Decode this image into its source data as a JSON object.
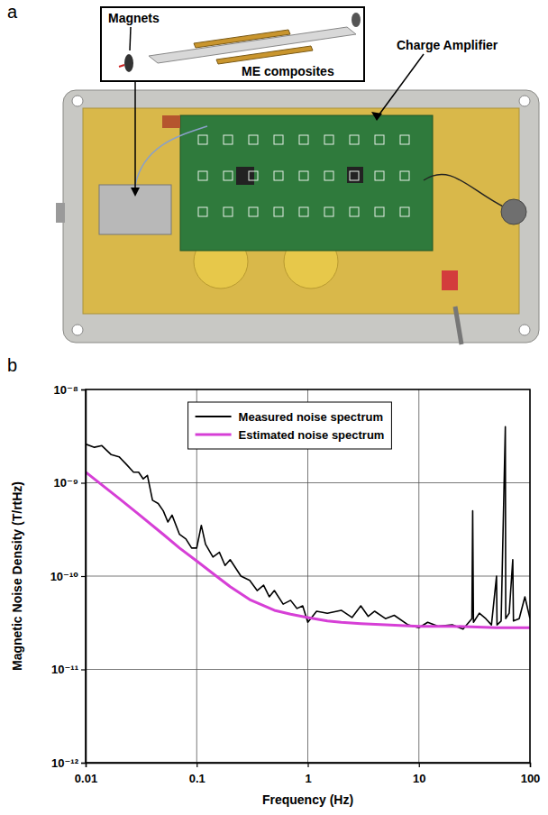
{
  "panel_a": {
    "label": "a",
    "magnets": "Magnets",
    "composites": "ME composites",
    "amplifier": "Charge Amplifier"
  },
  "chart_data": {
    "type": "line",
    "panel_label": "b",
    "x_label": "Frequency (Hz)",
    "y_label": "Magnetic Noise Density (T/rtHz)",
    "log": true,
    "grid": true,
    "legend": "top",
    "xlim": [
      0.01,
      100
    ],
    "xticks": [
      0.01,
      0.1,
      1,
      10,
      100
    ],
    "ylim": [
      1e-12,
      1e-08
    ],
    "yticks": [
      {
        "value": 1e-12,
        "label": "10⁻¹²"
      },
      {
        "value": 1e-11,
        "label": "10⁻¹¹"
      },
      {
        "value": 1e-10,
        "label": "10⁻¹⁰"
      },
      {
        "value": 1e-09,
        "label": "10⁻⁹"
      },
      {
        "value": 1e-08,
        "label": "10⁻⁸"
      }
    ],
    "series": [
      {
        "name": "Measured noise spectrum",
        "color": "#000000",
        "x": [
          0.01,
          0.012,
          0.014,
          0.017,
          0.02,
          0.023,
          0.027,
          0.03,
          0.033,
          0.036,
          0.04,
          0.045,
          0.05,
          0.055,
          0.06,
          0.07,
          0.08,
          0.09,
          0.1,
          0.11,
          0.12,
          0.14,
          0.16,
          0.18,
          0.2,
          0.25,
          0.3,
          0.35,
          0.4,
          0.45,
          0.5,
          0.6,
          0.7,
          0.8,
          0.9,
          1,
          1.2,
          1.5,
          2,
          2.5,
          3,
          3.5,
          4,
          5,
          6,
          8,
          10,
          12,
          15,
          20,
          25,
          30,
          30.5,
          31,
          35,
          40,
          45,
          50,
          50.5,
          55,
          60,
          60.5,
          65,
          70,
          71,
          80,
          90,
          100
        ],
        "values": [
          2.6e-09,
          2.4e-09,
          2.5e-09,
          2e-09,
          1.9e-09,
          1.6e-09,
          1.3e-09,
          1.3e-09,
          1.1e-09,
          1.2e-09,
          6.5e-10,
          6e-10,
          5e-10,
          3.8e-10,
          4.5e-10,
          2.8e-10,
          2.5e-10,
          2e-10,
          2e-10,
          3.5e-10,
          2.2e-10,
          1.6e-10,
          1.8e-10,
          1.3e-10,
          1.5e-10,
          1e-10,
          9e-11,
          7e-11,
          8e-11,
          6e-11,
          7e-11,
          5e-11,
          5.5e-11,
          4.5e-11,
          4.8e-11,
          3.2e-11,
          4.2e-11,
          4e-11,
          4.3e-11,
          3.6e-11,
          4.8e-11,
          3.7e-11,
          4.2e-11,
          3.5e-11,
          3.8e-11,
          3e-11,
          2.8e-11,
          3.2e-11,
          2.9e-11,
          3e-11,
          2.7e-11,
          3.5e-11,
          5e-10,
          3.2e-11,
          4e-11,
          3.5e-11,
          3e-11,
          1e-10,
          3e-11,
          3.3e-11,
          4e-09,
          3.5e-11,
          4e-11,
          1.5e-10,
          3.3e-11,
          3.5e-11,
          6e-11,
          3.5e-11
        ]
      },
      {
        "name": "Estimated noise spectrum",
        "color": "#d63fd6",
        "x": [
          0.01,
          0.02,
          0.03,
          0.05,
          0.07,
          0.1,
          0.15,
          0.2,
          0.3,
          0.5,
          0.7,
          1,
          1.5,
          2,
          3,
          5,
          10,
          20,
          50,
          100
        ],
        "values": [
          1.3e-09,
          6.8e-10,
          4.6e-10,
          2.8e-10,
          2e-10,
          1.45e-10,
          1e-10,
          7.7e-11,
          5.6e-11,
          4.3e-11,
          3.9e-11,
          3.6e-11,
          3.3e-11,
          3.2e-11,
          3.1e-11,
          3e-11,
          2.9e-11,
          2.9e-11,
          2.8e-11,
          2.8e-11
        ]
      }
    ]
  }
}
